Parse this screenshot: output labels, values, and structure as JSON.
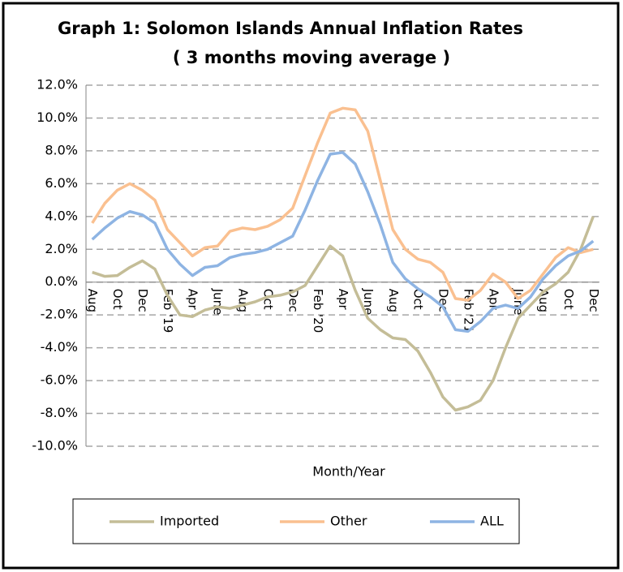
{
  "chart_data": {
    "type": "line",
    "title": "Graph 1:  Solomon Islands Annual Inflation Rates",
    "subtitle": "( 3 months moving average )",
    "x_label": "Month/Year",
    "categories": [
      "Aug",
      null,
      "Oct",
      null,
      "Dec",
      null,
      "Feb '19",
      null,
      "Apr",
      null,
      "June",
      null,
      "Aug",
      null,
      "Oct",
      null,
      "Dec",
      null,
      "Feb '20",
      null,
      "Apr",
      null,
      "June",
      null,
      "Aug",
      null,
      "Oct",
      null,
      "Dec",
      null,
      "Feb '21",
      null,
      "Apr",
      null,
      "June",
      null,
      "Aug",
      null,
      "Oct",
      null,
      "Dec"
    ],
    "series": [
      {
        "name": "Imported",
        "color": "#c4bd97",
        "values": [
          0.6,
          0.35,
          0.4,
          0.9,
          1.3,
          0.8,
          -0.8,
          -2.0,
          -2.1,
          -1.7,
          -1.5,
          -1.6,
          -1.4,
          -1.2,
          -0.9,
          -0.8,
          -0.6,
          -0.2,
          1.0,
          2.2,
          1.6,
          -0.5,
          -2.2,
          -2.9,
          -3.4,
          -3.5,
          -4.2,
          -5.5,
          -7.0,
          -7.8,
          -7.6,
          -7.2,
          -6.0,
          -4.0,
          -2.2,
          -1.4,
          -0.6,
          -0.1,
          0.6,
          2.0,
          4.0
        ]
      },
      {
        "name": "Other",
        "color": "#fac090",
        "values": [
          3.6,
          4.8,
          5.6,
          6.0,
          5.6,
          5.0,
          3.2,
          2.4,
          1.6,
          2.1,
          2.2,
          3.1,
          3.3,
          3.2,
          3.4,
          3.8,
          4.5,
          6.5,
          8.5,
          10.3,
          10.6,
          10.5,
          9.2,
          6.2,
          3.2,
          2.0,
          1.4,
          1.2,
          0.6,
          -1.0,
          -1.1,
          -0.5,
          0.5,
          0.0,
          -1.0,
          -0.5,
          0.5,
          1.5,
          2.1,
          1.8,
          2.0
        ]
      },
      {
        "name": "ALL",
        "color": "#8eb4e3",
        "values": [
          2.6,
          3.3,
          3.9,
          4.3,
          4.1,
          3.6,
          2.0,
          1.1,
          0.4,
          0.9,
          1.0,
          1.5,
          1.7,
          1.8,
          2.0,
          2.4,
          2.8,
          4.4,
          6.2,
          7.8,
          7.9,
          7.2,
          5.5,
          3.5,
          1.2,
          0.2,
          -0.4,
          -0.9,
          -1.5,
          -2.9,
          -3.0,
          -2.4,
          -1.6,
          -1.4,
          -1.6,
          -0.9,
          0.2,
          1.0,
          1.6,
          1.9,
          2.5
        ]
      }
    ],
    "ylim": [
      -10,
      12
    ],
    "yticks": [
      {
        "value": -10,
        "label": "-10.0%"
      },
      {
        "value": -8,
        "label": "-8.0%"
      },
      {
        "value": -6,
        "label": "-6.0%"
      },
      {
        "value": -4,
        "label": "-4.0%"
      },
      {
        "value": -2,
        "label": "-2.0%"
      },
      {
        "value": 0,
        "label": "0.0%"
      },
      {
        "value": 2,
        "label": "2.0%"
      },
      {
        "value": 4,
        "label": "4.0%"
      },
      {
        "value": 6,
        "label": "6.0%"
      },
      {
        "value": 8,
        "label": "8.0%"
      },
      {
        "value": 10,
        "label": "10.0%"
      },
      {
        "value": 12,
        "label": "12.0%"
      }
    ],
    "grid": true,
    "legend": "bottom"
  }
}
